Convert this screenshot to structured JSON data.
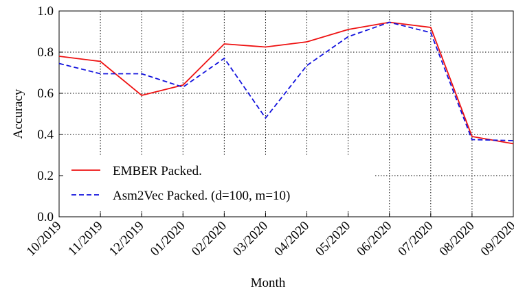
{
  "chart_data": {
    "type": "line",
    "x_label": "Month",
    "y_label": "Accuracy",
    "categories": [
      "10/2019",
      "11/2019",
      "12/2019",
      "01/2020",
      "02/2020",
      "03/2020",
      "04/2020",
      "05/2020",
      "06/2020",
      "07/2020",
      "08/2020",
      "09/2020"
    ],
    "series": [
      {
        "name": "EMBER Packed.",
        "color": "#ee1111",
        "dash": "solid",
        "values": [
          0.78,
          0.755,
          0.59,
          0.64,
          0.84,
          0.825,
          0.85,
          0.91,
          0.945,
          0.92,
          0.39,
          0.355
        ]
      },
      {
        "name": "Asm2Vec Packed. (d=100, m=10)",
        "color": "#1111dd",
        "dash": "dashed",
        "values": [
          0.745,
          0.695,
          0.695,
          0.63,
          0.77,
          0.48,
          0.735,
          0.875,
          0.945,
          0.895,
          0.375,
          0.37
        ]
      }
    ],
    "ylim": [
      0,
      1
    ],
    "yticks": [
      {
        "value": 0,
        "label": "0.0"
      },
      0.2,
      0.4,
      0.6,
      0.8,
      {
        "value": 1,
        "label": "1.0"
      }
    ],
    "grid": true,
    "legend": "lower left"
  }
}
